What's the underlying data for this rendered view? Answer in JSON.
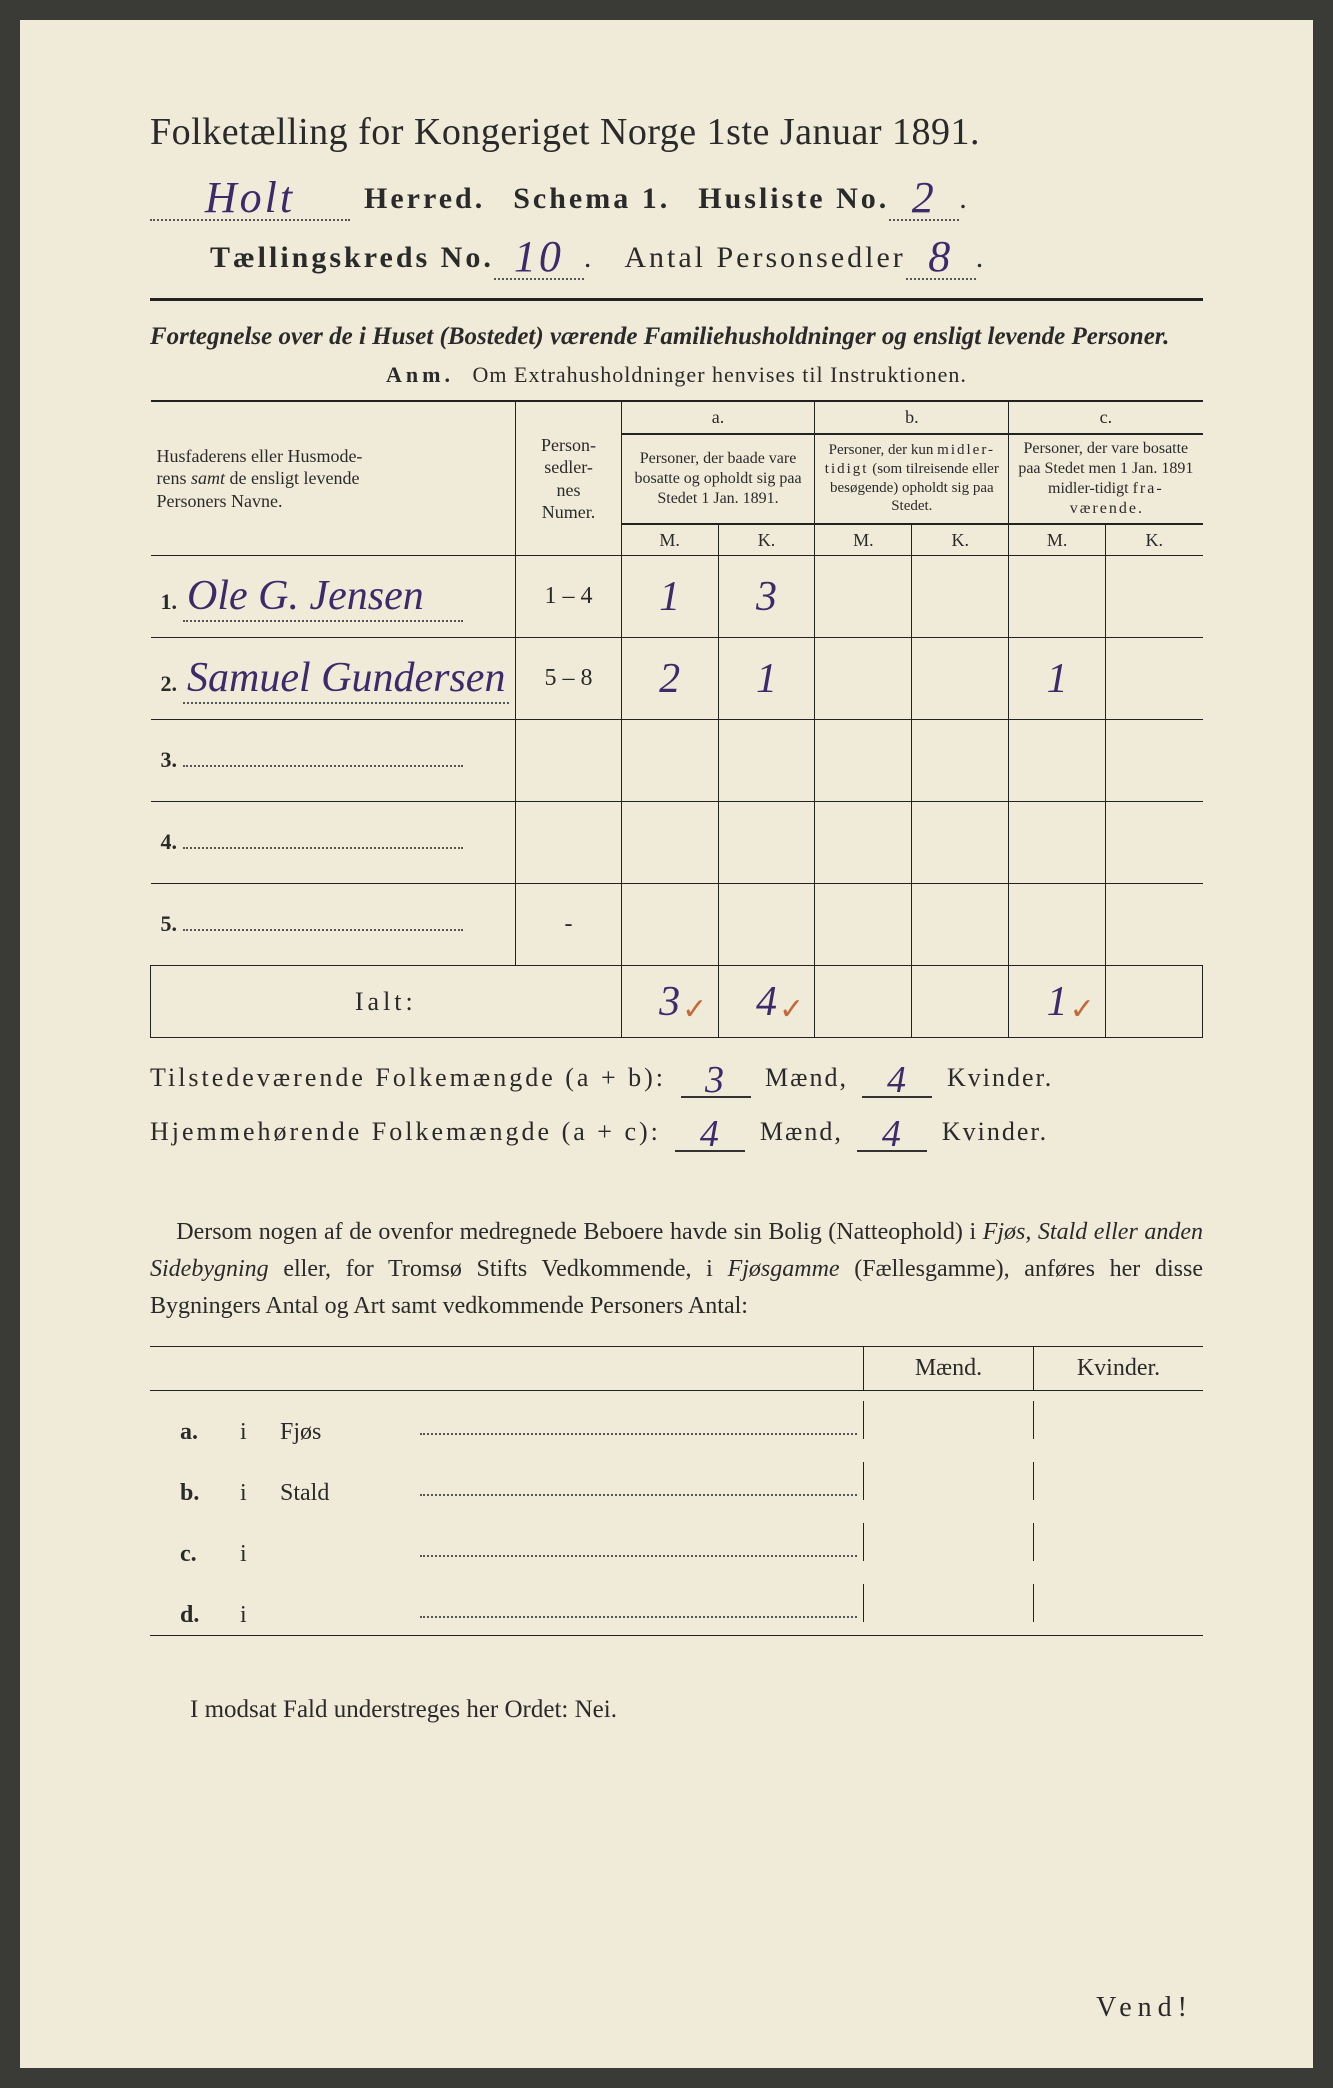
{
  "title": "Folketælling for Kongeriget Norge 1ste Januar 1891.",
  "line2": {
    "herred_hw": "Holt",
    "herred_label": "Herred.",
    "schema_label": "Schema 1.",
    "husliste_label": "Husliste No.",
    "husliste_hw": "2"
  },
  "line3": {
    "kreds_label": "Tællingskreds No.",
    "kreds_hw": "10",
    "antal_label": "Antal Personsedler",
    "antal_hw": "8"
  },
  "subtitle": "Fortegnelse over de i Huset (Bostedet) værende Familiehusholdninger og ensligt levende Personer.",
  "anm_label": "Anm.",
  "anm_text": "Om Extrahusholdninger henvises til Instruktionen.",
  "head": {
    "col_name": "Husfaderens eller Husmoderens samt de ensligt levende Personers Navne.",
    "col_num": "Person-\nsedler-\nnes\nNumer.",
    "a_label": "a.",
    "a_text": "Personer, der baade vare bosatte og opholdt sig paa Stedet 1 Jan. 1891.",
    "b_label": "b.",
    "b_text": "Personer, der kun midler-tidigt (som tilreisende eller besøgende) opholdt sig paa Stedet.",
    "c_label": "c.",
    "c_text": "Personer, der vare bosatte paa Stedet men 1 Jan. 1891 midler-tidigt fra-værende.",
    "m": "M.",
    "k": "K."
  },
  "rows": [
    {
      "n": "1.",
      "name": "Ole G. Jensen",
      "num": "1 – 4",
      "am": "1",
      "ak": "3",
      "bm": "",
      "bk": "",
      "cm": "",
      "ck": ""
    },
    {
      "n": "2.",
      "name": "Samuel Gundersen",
      "num": "5 – 8",
      "am": "2",
      "ak": "1",
      "bm": "",
      "bk": "",
      "cm": "1",
      "ck": ""
    },
    {
      "n": "3.",
      "name": "",
      "num": "",
      "am": "",
      "ak": "",
      "bm": "",
      "bk": "",
      "cm": "",
      "ck": ""
    },
    {
      "n": "4.",
      "name": "",
      "num": "",
      "am": "",
      "ak": "",
      "bm": "",
      "bk": "",
      "cm": "",
      "ck": ""
    },
    {
      "n": "5.",
      "name": "",
      "num": "-",
      "am": "",
      "ak": "",
      "bm": "",
      "bk": "",
      "cm": "",
      "ck": ""
    }
  ],
  "ialt": {
    "label": "Ialt:",
    "am": "3",
    "ak": "4",
    "bm": "",
    "bk": "",
    "cm": "1",
    "ck": ""
  },
  "sums": {
    "line1_a": "Tilstedeværende Folkemængde (a + b):",
    "line1_m": "3",
    "line1_mlab": "Mænd,",
    "line1_k": "4",
    "line1_klab": "Kvinder.",
    "line2_a": "Hjemmehørende Folkemængde (a + c):",
    "line2_m": "4",
    "line2_mlab": "Mænd,",
    "line2_k": "4",
    "line2_klab": "Kvinder."
  },
  "para": "Dersom nogen af de ovenfor medregnede Beboere havde sin Bolig (Natteophold) i Fjøs, Stald eller anden Sidebygning eller, for Tromsø Stifts Vedkommende, i Fjøsgamme (Fællesgamme), anføres her disse Bygningers Antal og Art samt vedkommende Personers Antal:",
  "mk": {
    "m": "Mænd.",
    "k": "Kvinder."
  },
  "bld": [
    {
      "lab": "a.",
      "typ": "Fjøs"
    },
    {
      "lab": "b.",
      "typ": "Stald"
    },
    {
      "lab": "c.",
      "typ": ""
    },
    {
      "lab": "d.",
      "typ": ""
    }
  ],
  "bld_i": "i",
  "footer1": "I modsat Fald understreges her Ordet: Nei.",
  "vend": "Vend!",
  "colors": {
    "paper": "#f0ebd8",
    "ink": "#2a2a2a",
    "handwriting": "#3b2b6b",
    "checkmark": "#c26a3c"
  }
}
